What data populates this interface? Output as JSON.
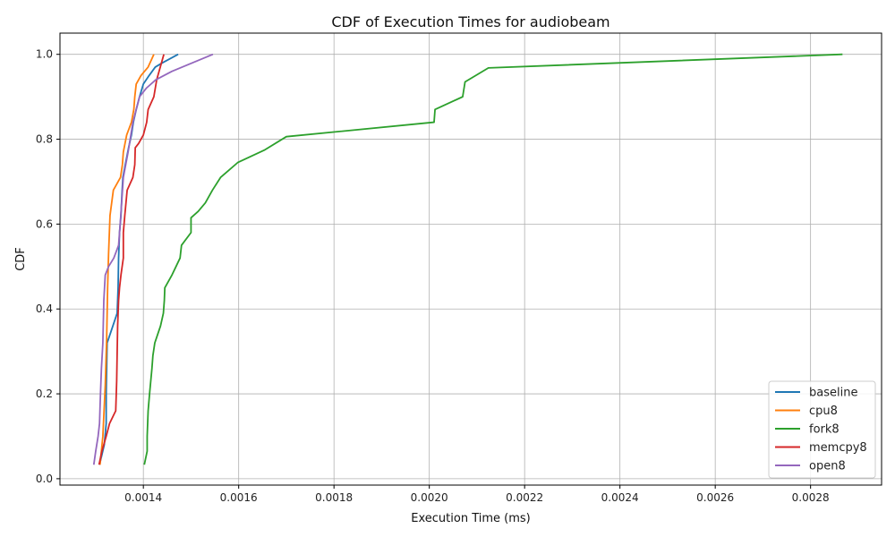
{
  "chart_data": {
    "type": "line",
    "title": "CDF of Execution Times for audiobeam",
    "xlabel": "Execution Time (ms)",
    "ylabel": "CDF",
    "xlim": [
      0.001225,
      0.002949
    ],
    "ylim": [
      -0.015,
      1.05
    ],
    "xticks": [
      0.0014,
      0.0016,
      0.0018,
      0.002,
      0.0022,
      0.0024,
      0.0026,
      0.0028
    ],
    "xtick_labels": [
      "0.0014",
      "0.0016",
      "0.0018",
      "0.0020",
      "0.0022",
      "0.0024",
      "0.0026",
      "0.0028"
    ],
    "yticks": [
      0.0,
      0.2,
      0.4,
      0.6,
      0.8,
      1.0
    ],
    "ytick_labels": [
      "0.0",
      "0.2",
      "0.4",
      "0.6",
      "0.8",
      "1.0"
    ],
    "grid": true,
    "legend_position": "bottom-right",
    "series": [
      {
        "name": "baseline",
        "color": "#1f77b4",
        "x": [
          0.001308,
          0.001318,
          0.001322,
          0.001322,
          0.001324,
          0.001333,
          0.001345,
          0.001347,
          0.001348,
          0.00135,
          0.001353,
          0.001355,
          0.001357,
          0.001362,
          0.001369,
          0.001375,
          0.001379,
          0.001385,
          0.001392,
          0.0014,
          0.001412,
          0.001425,
          0.00144,
          0.001473
        ],
        "y": [
          0.033,
          0.08,
          0.13,
          0.2,
          0.32,
          0.35,
          0.39,
          0.45,
          0.52,
          0.58,
          0.62,
          0.67,
          0.71,
          0.74,
          0.78,
          0.81,
          0.84,
          0.87,
          0.9,
          0.93,
          0.95,
          0.97,
          0.98,
          1.0
        ]
      },
      {
        "name": "cpu8",
        "color": "#ff7f0e",
        "x": [
          0.001309,
          0.001315,
          0.00132,
          0.001323,
          0.001325,
          0.001327,
          0.00133,
          0.001337,
          0.001352,
          0.001356,
          0.001358,
          0.001365,
          0.001375,
          0.00138,
          0.001382,
          0.001385,
          0.001395,
          0.00141,
          0.001418,
          0.001422
        ],
        "y": [
          0.033,
          0.1,
          0.22,
          0.33,
          0.45,
          0.53,
          0.62,
          0.68,
          0.71,
          0.74,
          0.77,
          0.81,
          0.84,
          0.87,
          0.9,
          0.93,
          0.95,
          0.97,
          0.99,
          1.0
        ]
      },
      {
        "name": "fork8",
        "color": "#2ca02c",
        "x": [
          0.001402,
          0.001408,
          0.001408,
          0.00141,
          0.001413,
          0.001418,
          0.00142,
          0.001424,
          0.001436,
          0.001442,
          0.001444,
          0.001445,
          0.00146,
          0.001477,
          0.00148,
          0.0015,
          0.0015,
          0.001515,
          0.00153,
          0.001545,
          0.001562,
          0.001598,
          0.001655,
          0.0017,
          0.00201,
          0.002012,
          0.00207,
          0.002075,
          0.002124,
          0.002867
        ],
        "y": [
          0.033,
          0.065,
          0.1,
          0.16,
          0.2,
          0.26,
          0.29,
          0.32,
          0.36,
          0.39,
          0.42,
          0.45,
          0.48,
          0.52,
          0.55,
          0.58,
          0.615,
          0.63,
          0.65,
          0.68,
          0.71,
          0.745,
          0.775,
          0.806,
          0.84,
          0.87,
          0.9,
          0.935,
          0.968,
          1.0
        ]
      },
      {
        "name": "memcpy8",
        "color": "#d62728",
        "x": [
          0.001307,
          0.001313,
          0.001322,
          0.001329,
          0.001342,
          0.001344,
          0.001346,
          0.001348,
          0.00135,
          0.001353,
          0.001358,
          0.001358,
          0.001361,
          0.001366,
          0.001378,
          0.001382,
          0.001383,
          0.00139,
          0.0014,
          0.001407,
          0.00141,
          0.001422,
          0.001428,
          0.001443
        ],
        "y": [
          0.033,
          0.065,
          0.1,
          0.13,
          0.16,
          0.23,
          0.36,
          0.42,
          0.45,
          0.48,
          0.52,
          0.58,
          0.62,
          0.68,
          0.71,
          0.74,
          0.78,
          0.79,
          0.81,
          0.84,
          0.87,
          0.9,
          0.94,
          1.0
        ]
      },
      {
        "name": "open8",
        "color": "#9467bd",
        "x": [
          0.001296,
          0.0013,
          0.001305,
          0.001308,
          0.00131,
          0.001312,
          0.001315,
          0.001317,
          0.00132,
          0.001327,
          0.001338,
          0.001348,
          0.001352,
          0.001358,
          0.001368,
          0.001378,
          0.001385,
          0.001392,
          0.001406,
          0.001426,
          0.00146,
          0.001546
        ],
        "y": [
          0.033,
          0.065,
          0.1,
          0.13,
          0.2,
          0.26,
          0.32,
          0.42,
          0.48,
          0.5,
          0.52,
          0.55,
          0.61,
          0.71,
          0.77,
          0.84,
          0.87,
          0.9,
          0.92,
          0.94,
          0.96,
          1.0
        ]
      }
    ]
  }
}
